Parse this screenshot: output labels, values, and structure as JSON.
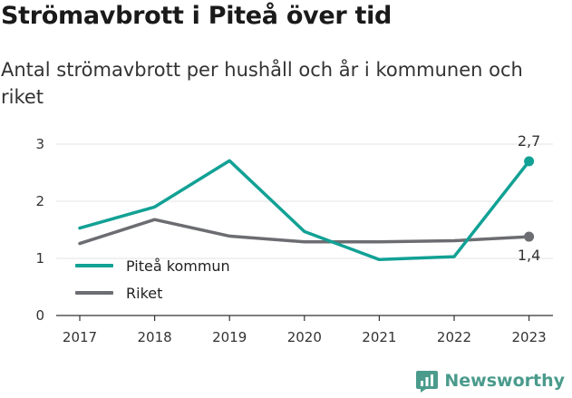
{
  "title": "Strömavbrott i Piteå över tid",
  "subtitle": "Antal strömavbrott per hushåll och år i kommunen och riket",
  "brand": {
    "name": "Newsworthy",
    "icon": "newsworthy-logo-icon",
    "color": "#4a9b8c"
  },
  "chart_data": {
    "type": "line",
    "title": "Strömavbrott i Piteå över tid",
    "subtitle": "Antal strömavbrott per hushåll och år i kommunen och riket",
    "xlabel": "",
    "ylabel": "",
    "x": [
      "2017",
      "2018",
      "2019",
      "2020",
      "2021",
      "2022",
      "2023"
    ],
    "ylim": [
      0,
      3
    ],
    "yticks": [
      "0",
      "1",
      "2",
      "3"
    ],
    "grid": true,
    "legend_position": "left",
    "series": [
      {
        "name": "Piteå kommun",
        "color": "#12a195",
        "values": [
          1.53,
          1.9,
          2.71,
          1.47,
          0.98,
          1.03,
          2.7
        ],
        "end_label": "2,7"
      },
      {
        "name": "Riket",
        "color": "#6c6d72",
        "values": [
          1.26,
          1.68,
          1.39,
          1.29,
          1.29,
          1.31,
          1.38
        ],
        "end_label": "1,4"
      }
    ]
  }
}
